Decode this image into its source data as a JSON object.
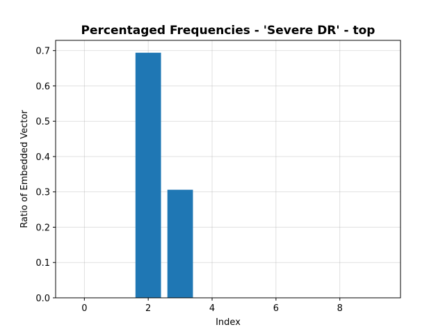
{
  "chart_data": {
    "type": "bar",
    "title": "Percentaged Frequencies - 'Severe DR' - top",
    "xlabel": "Index",
    "ylabel": "Ratio of Embedded Vector",
    "x": [
      0,
      1,
      2,
      3,
      4,
      5,
      6,
      7,
      8,
      9
    ],
    "values": [
      0,
      0,
      0.694,
      0.306,
      0,
      0,
      0,
      0,
      0,
      0
    ],
    "xlim": [
      -0.9,
      9.9
    ],
    "ylim": [
      0,
      0.729
    ],
    "xticks": [
      0,
      2,
      4,
      6,
      8
    ],
    "yticks": [
      0.0,
      0.1,
      0.2,
      0.3,
      0.4,
      0.5,
      0.6,
      0.7
    ],
    "ytick_labels": [
      "0.0",
      "0.1",
      "0.2",
      "0.3",
      "0.4",
      "0.5",
      "0.6",
      "0.7"
    ],
    "bar_width": 0.8,
    "grid": true,
    "bar_color": "#1f77b4"
  }
}
